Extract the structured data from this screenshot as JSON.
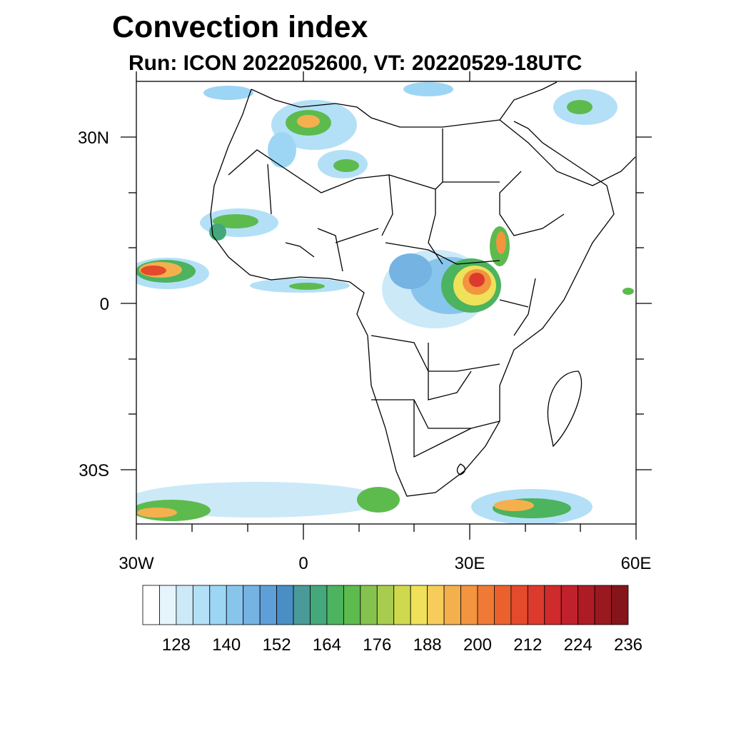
{
  "title": "Convection index",
  "subtitle": "Run: ICON 2022052600,  VT: 20220529-18UTC",
  "map": {
    "region": "Africa",
    "lat_labels": [
      "30N",
      "0",
      "30S"
    ],
    "lon_labels": [
      "30W",
      "0",
      "30E",
      "60E"
    ]
  },
  "colorbar": {
    "tick_labels": [
      "128",
      "140",
      "152",
      "164",
      "176",
      "188",
      "200",
      "212",
      "224",
      "236"
    ],
    "colors": [
      "#ffffff",
      "#e6f4fc",
      "#cce9f8",
      "#b3e0f7",
      "#9cd6f4",
      "#88c5ec",
      "#75b3e3",
      "#5f9fd8",
      "#4a8ec6",
      "#4a9a9a",
      "#45a87a",
      "#4cb35e",
      "#5dbb4e",
      "#86c34e",
      "#a8cc4e",
      "#cfd94e",
      "#efe15a",
      "#f7cc5a",
      "#f5b04e",
      "#f3943f",
      "#ef7a35",
      "#eb612e",
      "#e44a2c",
      "#dc3a2c",
      "#cf2a2c",
      "#c0212c",
      "#ad1b25",
      "#9a1820",
      "#86141b"
    ]
  }
}
